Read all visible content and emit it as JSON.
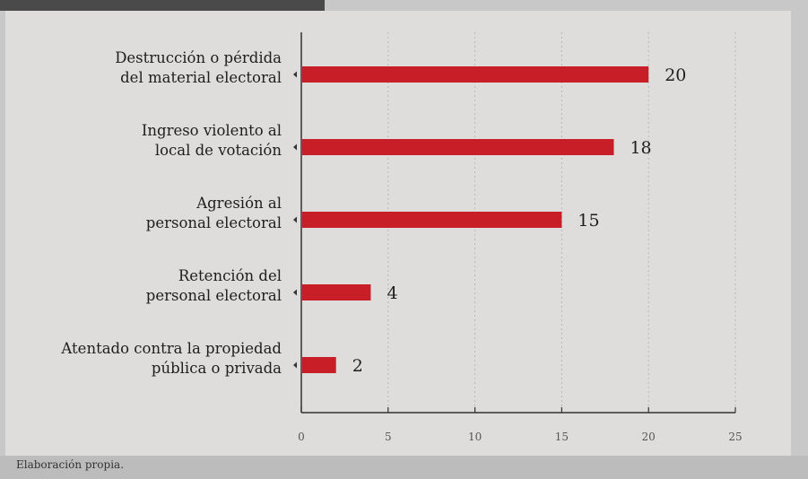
{
  "chart_data": {
    "type": "bar",
    "orientation": "horizontal",
    "categories": [
      [
        "Destrucción o pérdida",
        "del material electoral"
      ],
      [
        "Ingreso violento al",
        "local de votación"
      ],
      [
        "Agresión al",
        "personal electoral"
      ],
      [
        "Retención del",
        "personal electoral"
      ],
      [
        "Atentado contra la propiedad",
        "pública o privada"
      ]
    ],
    "values": [
      20,
      18,
      15,
      4,
      2
    ],
    "xlim": [
      0,
      25
    ],
    "xticks": [
      0,
      5,
      10,
      15,
      20,
      25
    ],
    "grid": "vertical",
    "bar_color": "#c81e28"
  },
  "source_note": "Elaboración propia."
}
